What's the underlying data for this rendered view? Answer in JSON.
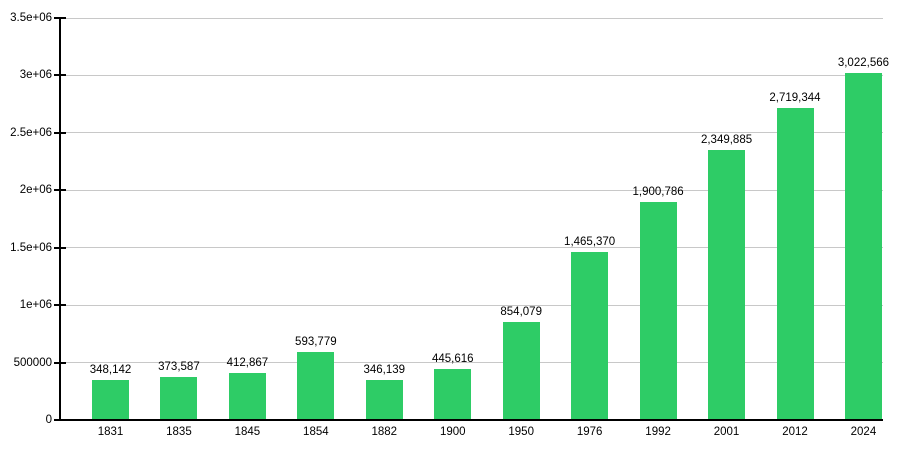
{
  "chart_data": {
    "type": "bar",
    "title": "",
    "xlabel": "",
    "ylabel": "",
    "categories": [
      "1831",
      "1835",
      "1845",
      "1854",
      "1882",
      "1900",
      "1950",
      "1976",
      "1992",
      "2001",
      "2012",
      "2024"
    ],
    "values": [
      348142,
      373587,
      412867,
      593779,
      346139,
      445616,
      854079,
      1465370,
      1900786,
      2349885,
      2719344,
      3022566
    ],
    "value_labels": [
      "348,142",
      "373,587",
      "412,867",
      "593,779",
      "346,139",
      "445,616",
      "854,079",
      "1,465,370",
      "1,900,786",
      "2,349,885",
      "2,719,344",
      "3,022,566"
    ],
    "ylim": [
      0,
      3500000
    ],
    "yticks": [
      {
        "value": 0,
        "label": "0"
      },
      {
        "value": 500000,
        "label": "500000"
      },
      {
        "value": 1000000,
        "label": "1e+06"
      },
      {
        "value": 1500000,
        "label": "1.5e+06"
      },
      {
        "value": 2000000,
        "label": "2e+06"
      },
      {
        "value": 2500000,
        "label": "2.5e+06"
      },
      {
        "value": 3000000,
        "label": "3e+06"
      },
      {
        "value": 3500000,
        "label": "3.5e+06"
      }
    ],
    "grid": true,
    "legend": "none",
    "colors": {
      "bar": "#2ecc66",
      "gridline": "#c8c8c8",
      "axis": "#000000",
      "text": "#000000",
      "background": "#ffffff"
    }
  }
}
